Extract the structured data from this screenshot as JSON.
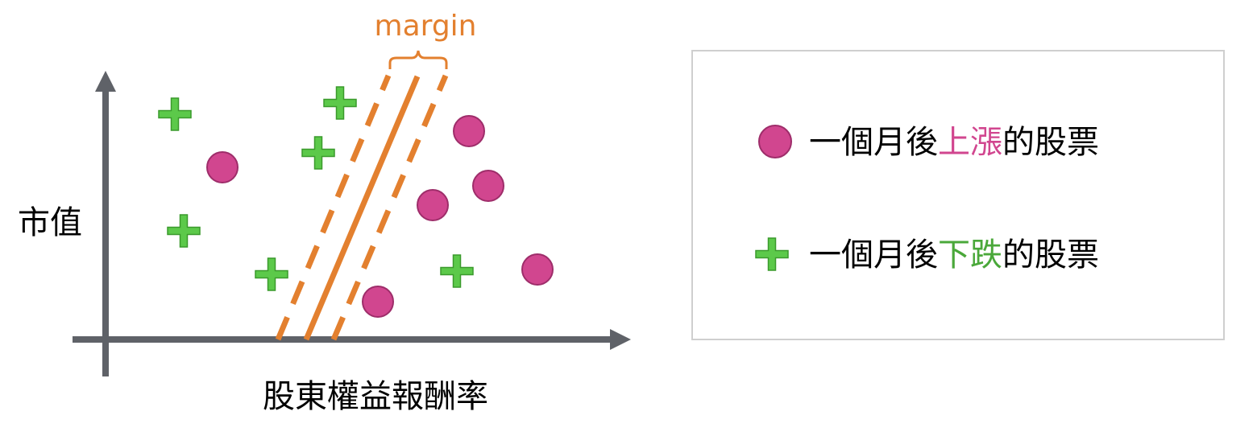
{
  "axes": {
    "y_label": "市值",
    "x_label": "股東權益報酬率"
  },
  "margin_label": "margin",
  "legend": {
    "up": {
      "marker": "circle-icon",
      "prefix": "一個月後",
      "highlight": "上漲",
      "suffix": "的股票"
    },
    "down": {
      "marker": "plus-icon",
      "prefix": "一個月後",
      "highlight": "下跌",
      "suffix": "的股票"
    }
  },
  "colors": {
    "axis": "#5f6268",
    "boundary": "#e3802f",
    "up": "#d1468f",
    "up_stroke": "#9e2d6a",
    "down": "#5cc94a",
    "down_stroke": "#3a9a2c",
    "up_text": "#d1468f",
    "down_text": "#4aa83a",
    "legend_border": "#cfcfcf"
  }
}
